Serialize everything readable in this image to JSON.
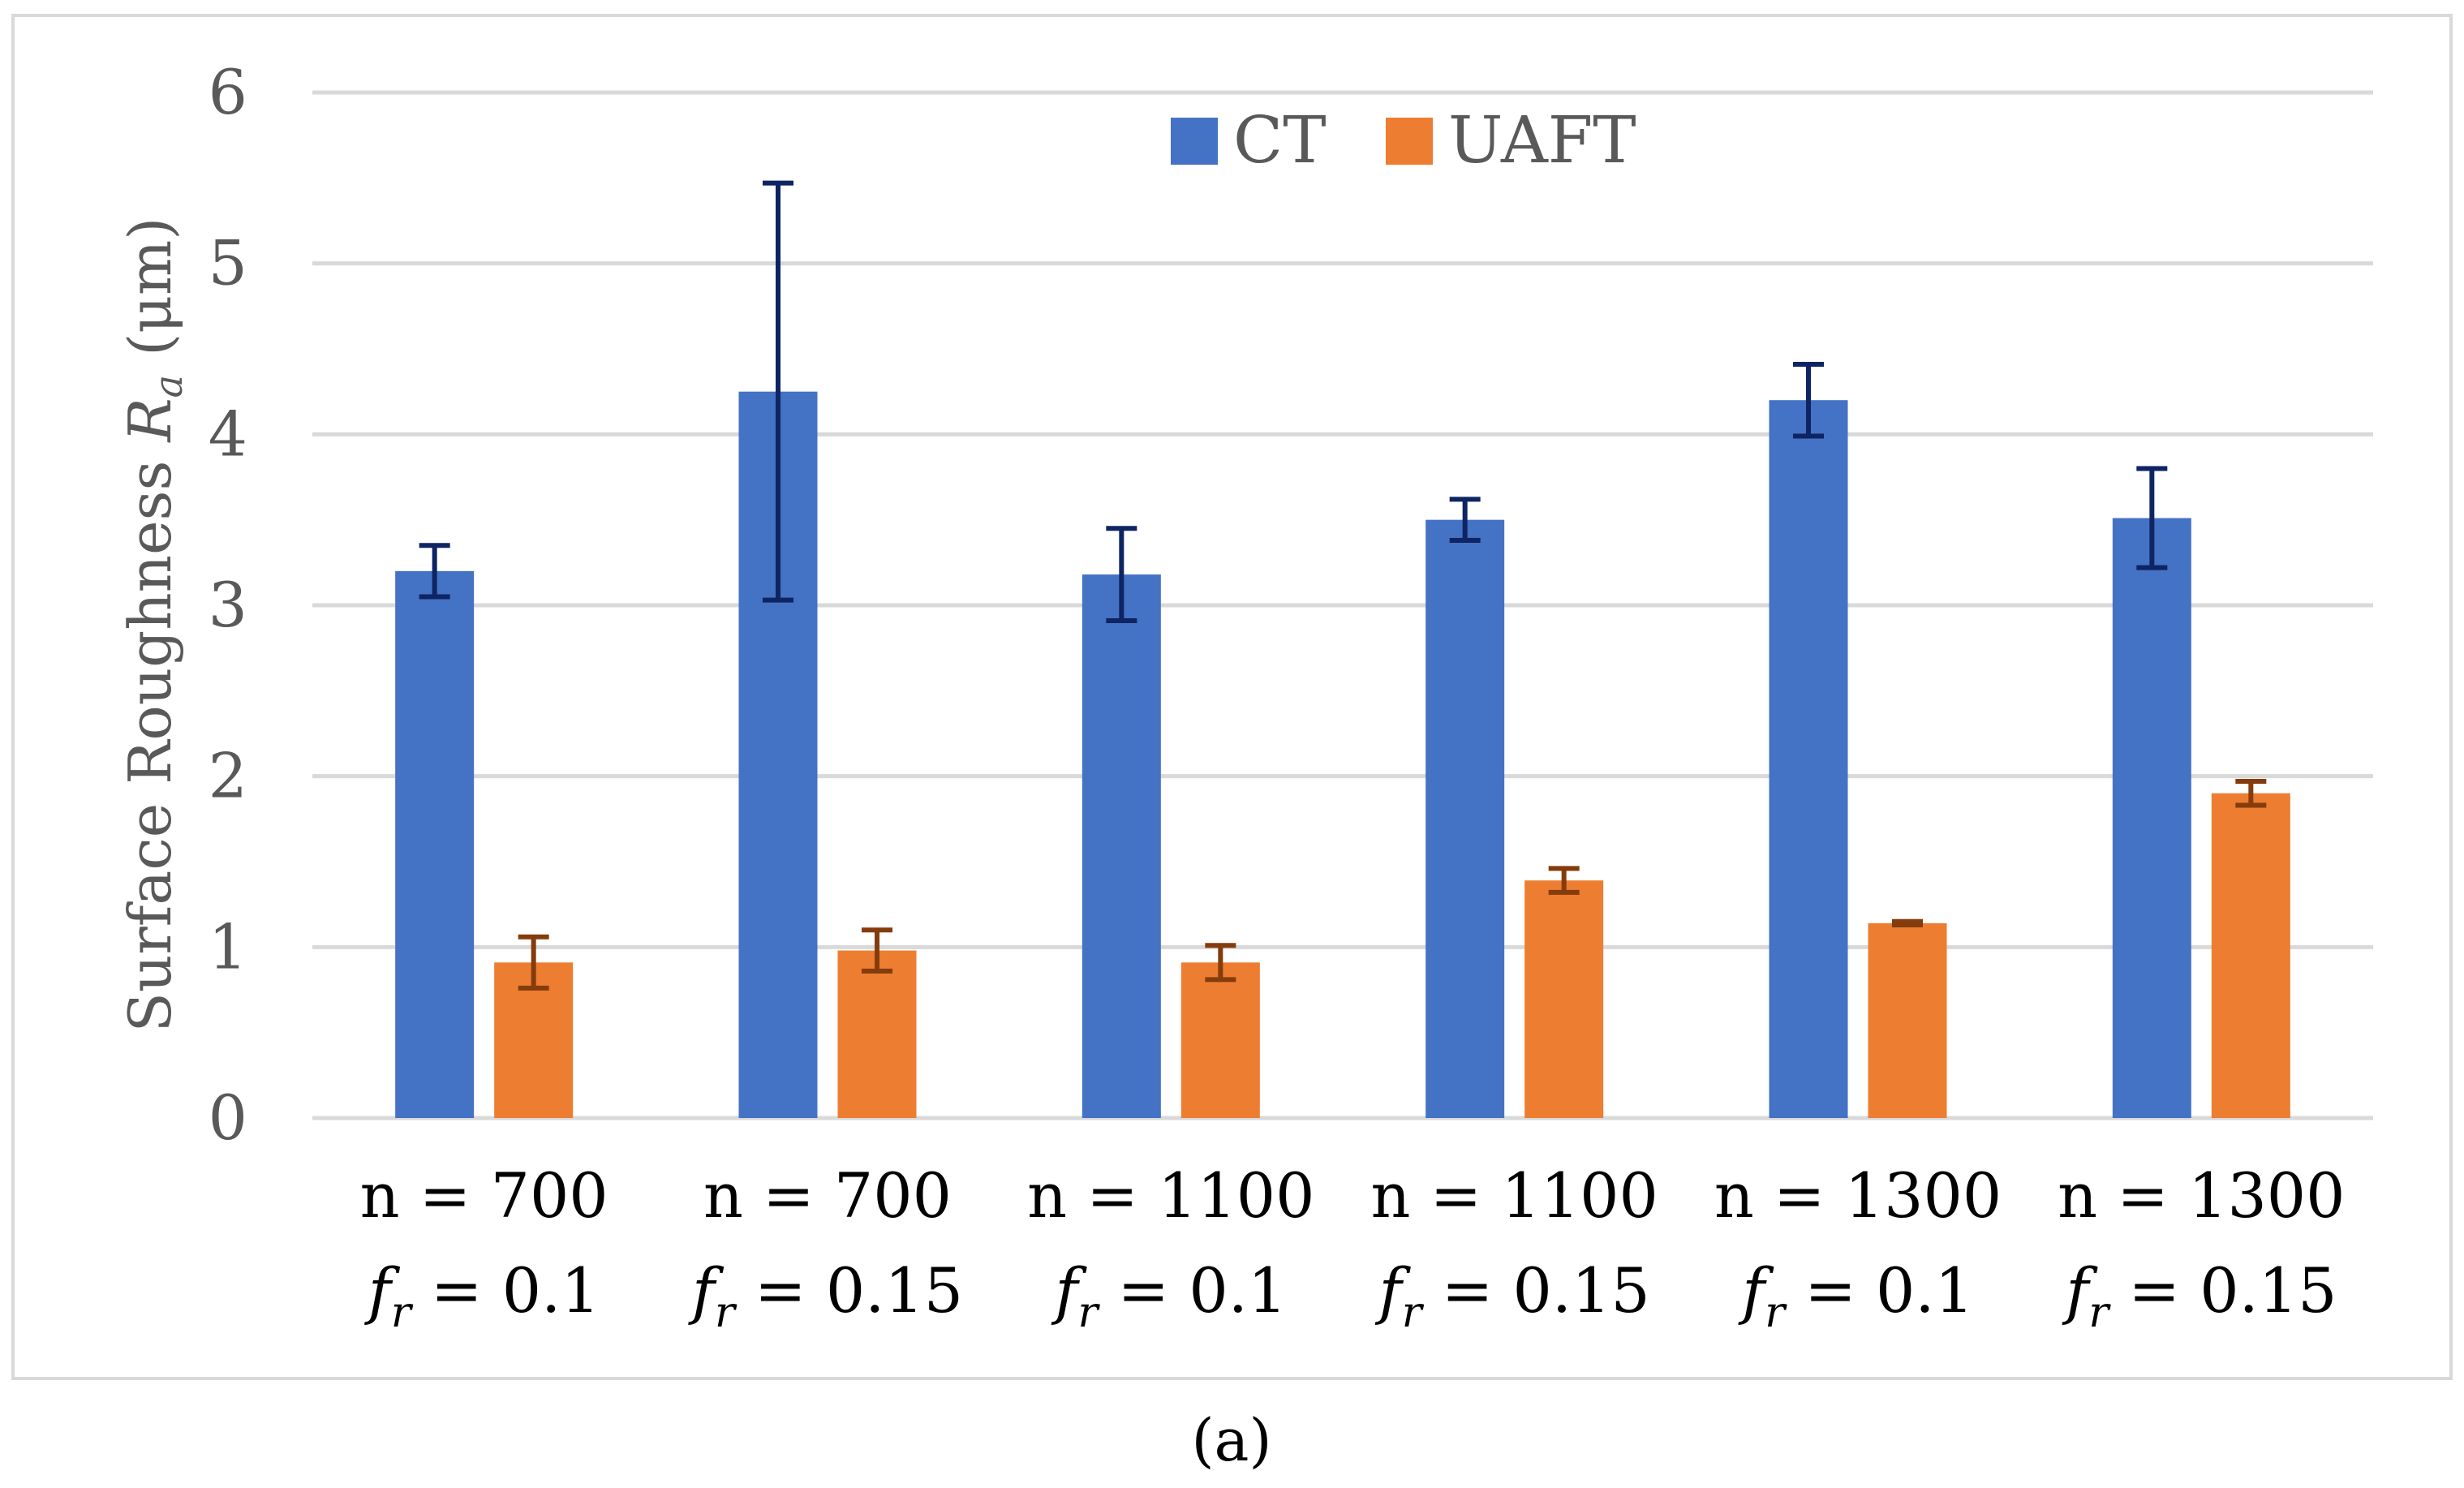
{
  "chart_data": {
    "type": "bar",
    "title": "",
    "ylabel": {
      "main": "Surface Roughness ",
      "symbol": "R",
      "subscript": "a",
      "unit": " (μm)"
    },
    "xlabel": "",
    "ylim": [
      0,
      6
    ],
    "yticks": [
      "0",
      "1",
      "2",
      "3",
      "4",
      "5",
      "6"
    ],
    "grid": true,
    "legend_position": "top-center",
    "categories": [
      {
        "n_label": "n = 700",
        "fr_symbol": "f",
        "fr_sub": "r",
        "fr_value": " = 0.1"
      },
      {
        "n_label": "n = 700",
        "fr_symbol": "f",
        "fr_sub": "r",
        "fr_value": " = 0.15"
      },
      {
        "n_label": "n = 1100",
        "fr_symbol": "f",
        "fr_sub": "r",
        "fr_value": " = 0.1"
      },
      {
        "n_label": "n = 1100",
        "fr_symbol": "f",
        "fr_sub": "r",
        "fr_value": " = 0.15"
      },
      {
        "n_label": "n = 1300",
        "fr_symbol": "f",
        "fr_sub": "r",
        "fr_value": " = 0.1"
      },
      {
        "n_label": "n = 1300",
        "fr_symbol": "f",
        "fr_sub": "r",
        "fr_value": " = 0.15"
      }
    ],
    "series": [
      {
        "name": "CT",
        "color": "#4472C4",
        "error_color": "#0E2463",
        "values": [
          3.2,
          4.25,
          3.18,
          3.5,
          4.2,
          3.51
        ],
        "errors": [
          0.15,
          1.22,
          0.27,
          0.12,
          0.21,
          0.29
        ]
      },
      {
        "name": "UAFT",
        "color": "#ED7D31",
        "error_color": "#843C0C",
        "values": [
          0.91,
          0.98,
          0.91,
          1.39,
          1.14,
          1.9
        ],
        "errors": [
          0.15,
          0.12,
          0.1,
          0.07,
          0.01,
          0.07
        ]
      }
    ],
    "caption": "(a)"
  },
  "colors": {
    "axis_text": "#595959",
    "category_text": "#000000",
    "gridline": "#D9D9D9",
    "frame": "#D9D9D9"
  }
}
